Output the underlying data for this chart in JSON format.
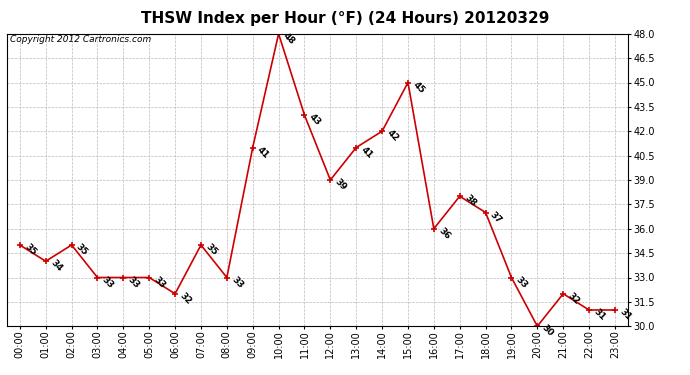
{
  "title": "THSW Index per Hour (°F) (24 Hours) 20120329",
  "copyright_text": "Copyright 2012 Cartronics.com",
  "hours": [
    "00:00",
    "01:00",
    "02:00",
    "03:00",
    "04:00",
    "05:00",
    "06:00",
    "07:00",
    "08:00",
    "09:00",
    "10:00",
    "11:00",
    "12:00",
    "13:00",
    "14:00",
    "15:00",
    "16:00",
    "17:00",
    "18:00",
    "19:00",
    "20:00",
    "21:00",
    "22:00",
    "23:00"
  ],
  "values": [
    35,
    34,
    35,
    33,
    33,
    33,
    32,
    35,
    33,
    41,
    48,
    43,
    39,
    41,
    42,
    45,
    36,
    38,
    37,
    33,
    30,
    32,
    31,
    31
  ],
  "line_color": "#cc0000",
  "marker_color": "#cc0000",
  "background_color": "#ffffff",
  "grid_color": "#bbbbbb",
  "ylim_min": 30.0,
  "ylim_max": 48.0,
  "yticks": [
    30.0,
    31.5,
    33.0,
    34.5,
    36.0,
    37.5,
    39.0,
    40.5,
    42.0,
    43.5,
    45.0,
    46.5,
    48.0
  ],
  "title_fontsize": 11,
  "annotation_fontsize": 6.5,
  "tick_fontsize": 7,
  "copyright_fontsize": 6.5
}
